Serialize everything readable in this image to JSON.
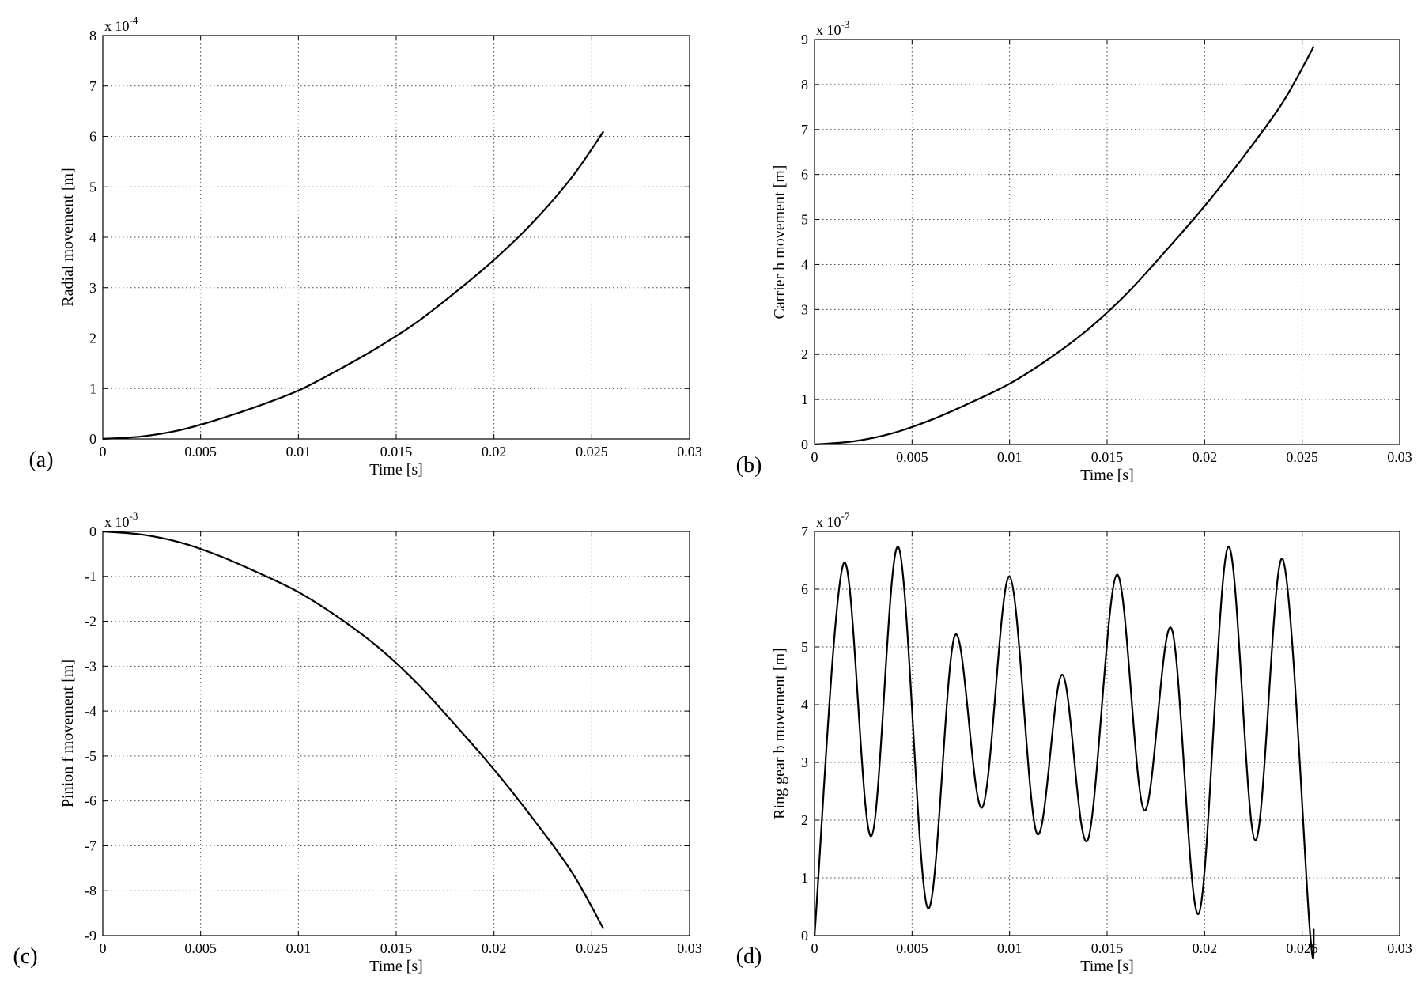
{
  "chart_data": [
    {
      "type": "line",
      "panel_label": "(a)",
      "xlabel": "Time [s]",
      "ylabel": "Radial movement [m]",
      "exponent_base": "x 10",
      "exponent": "-4",
      "xlim": [
        0,
        0.03
      ],
      "ylim": [
        0,
        8
      ],
      "xticks": [
        "0",
        "0.005",
        "0.01",
        "0.015",
        "0.02",
        "0.025",
        "0.03"
      ],
      "yticks": [
        "0",
        "1",
        "2",
        "3",
        "4",
        "5",
        "6",
        "7",
        "8"
      ],
      "grid": true,
      "series": [
        {
          "x": [
            0,
            0.002,
            0.004,
            0.006,
            0.008,
            0.01,
            0.012,
            0.014,
            0.016,
            0.018,
            0.02,
            0.022,
            0.024,
            0.0256
          ],
          "values": [
            0,
            0.05,
            0.18,
            0.4,
            0.66,
            0.96,
            1.36,
            1.8,
            2.3,
            2.9,
            3.55,
            4.3,
            5.2,
            6.1
          ]
        }
      ]
    },
    {
      "type": "line",
      "panel_label": "(b)",
      "xlabel": "Time [s]",
      "ylabel": "Carrier h movement [m]",
      "exponent_base": "x 10",
      "exponent": "-3",
      "xlim": [
        0,
        0.03
      ],
      "ylim": [
        0,
        9
      ],
      "xticks": [
        "0",
        "0.005",
        "0.01",
        "0.015",
        "0.02",
        "0.025",
        "0.03"
      ],
      "yticks": [
        "0",
        "1",
        "2",
        "3",
        "4",
        "5",
        "6",
        "7",
        "8",
        "9"
      ],
      "grid": true,
      "series": [
        {
          "x": [
            0,
            0.002,
            0.004,
            0.006,
            0.008,
            0.01,
            0.012,
            0.014,
            0.016,
            0.018,
            0.02,
            0.022,
            0.024,
            0.0256
          ],
          "values": [
            0,
            0.07,
            0.25,
            0.55,
            0.93,
            1.35,
            1.9,
            2.55,
            3.35,
            4.3,
            5.3,
            6.4,
            7.6,
            8.85
          ]
        }
      ]
    },
    {
      "type": "line",
      "panel_label": "(c)",
      "xlabel": "Time [s]",
      "ylabel": "Pinion f movement [m]",
      "exponent_base": "x 10",
      "exponent": "-3",
      "xlim": [
        0,
        0.03
      ],
      "ylim": [
        -9,
        0
      ],
      "xticks": [
        "0",
        "0.005",
        "0.01",
        "0.015",
        "0.02",
        "0.025",
        "0.03"
      ],
      "yticks": [
        "0",
        "-1",
        "-2",
        "-3",
        "-4",
        "-5",
        "-6",
        "-7",
        "-8",
        "-9"
      ],
      "grid": true,
      "series": [
        {
          "x": [
            0,
            0.002,
            0.004,
            0.006,
            0.008,
            0.01,
            0.012,
            0.014,
            0.016,
            0.018,
            0.02,
            0.022,
            0.024,
            0.0256
          ],
          "values": [
            0,
            -0.07,
            -0.25,
            -0.55,
            -0.93,
            -1.35,
            -1.9,
            -2.55,
            -3.35,
            -4.3,
            -5.3,
            -6.4,
            -7.6,
            -8.85
          ]
        }
      ]
    },
    {
      "type": "line",
      "panel_label": "(d)",
      "xlabel": "Time [s]",
      "ylabel": "Ring gear b movement [m]",
      "exponent_base": "x 10",
      "exponent": "-7",
      "xlim": [
        0,
        0.03
      ],
      "ylim": [
        0,
        7
      ],
      "xticks": [
        "0",
        "0.005",
        "0.01",
        "0.015",
        "0.02",
        "0.025",
        "0.03"
      ],
      "yticks": [
        "0",
        "1",
        "2",
        "3",
        "4",
        "5",
        "6",
        "7"
      ],
      "grid": true,
      "series": [
        {
          "x": [
            0,
            0.0015,
            0.0029,
            0.0043,
            0.0058,
            0.0072,
            0.0086,
            0.01,
            0.0114,
            0.0127,
            0.014,
            0.0155,
            0.0169,
            0.0183,
            0.0197,
            0.0212,
            0.0226,
            0.024,
            0.0254,
            0.0256
          ],
          "values": [
            0,
            6.45,
            1.72,
            6.73,
            0.48,
            5.2,
            2.22,
            6.22,
            1.77,
            4.52,
            1.65,
            6.25,
            2.17,
            5.32,
            0.38,
            6.73,
            1.65,
            6.52,
            0.07,
            0.12
          ]
        }
      ]
    }
  ]
}
